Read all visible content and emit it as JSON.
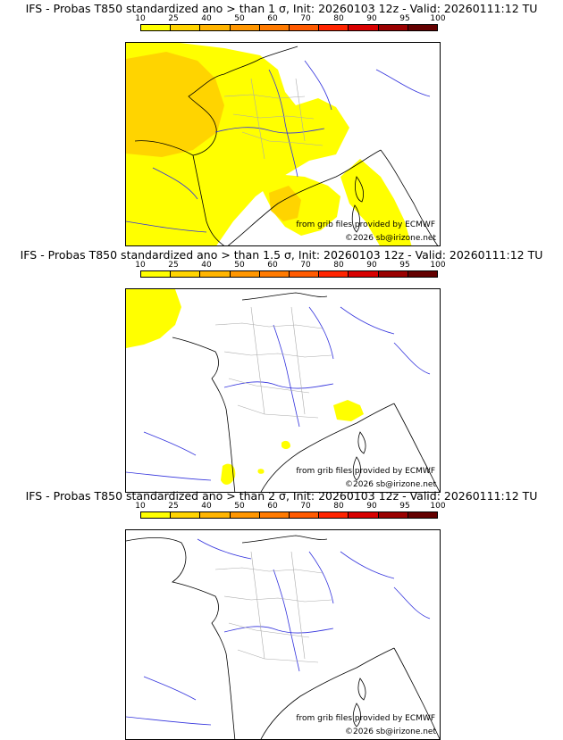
{
  "colors": {
    "scale": [
      "#ffff00",
      "#ffd400",
      "#ffb400",
      "#ff9600",
      "#ff7a00",
      "#ff5a00",
      "#ff2400",
      "#d80000",
      "#9a0000",
      "#640000"
    ],
    "coast": "#000000",
    "rivers": "#3333dd",
    "regions": "#aaaaaa"
  },
  "panels": [
    {
      "title": "IFS - Probas T850  standardized ano > than 1 σ, Init: 20260103 12z - Valid: 20260111:12 TU",
      "scale_ticks": [
        "10",
        "25",
        "40",
        "50",
        "60",
        "70",
        "80",
        "90",
        "95",
        "100"
      ],
      "credit_provider": "from grib files provided by ECMWF",
      "credit_copyright": "©2026 sb@irizone.net",
      "probability_areas": [
        {
          "level": "10",
          "shape": "west-atlantic-france"
        },
        {
          "level": "10",
          "shape": "mediterranean-italy"
        },
        {
          "level": "25",
          "shape": "bay-of-biscay-core"
        },
        {
          "level": "25",
          "shape": "gulf-of-lion-core"
        }
      ]
    },
    {
      "title": "IFS - Probas T850  standardized ano > than 1.5 σ, Init: 20260103 12z - Valid: 20260111:12 TU",
      "scale_ticks": [
        "10",
        "25",
        "40",
        "50",
        "60",
        "70",
        "80",
        "90",
        "95",
        "100"
      ],
      "credit_provider": "from grib files provided by ECMWF",
      "credit_copyright": "©2026 sb@irizone.net",
      "probability_areas": [
        {
          "level": "10",
          "shape": "northwest-corner"
        },
        {
          "level": "10",
          "shape": "ligurian-patch"
        },
        {
          "level": "10",
          "shape": "small-mediterranean-spots"
        }
      ]
    },
    {
      "title": "IFS - Probas T850  standardized ano > than 2 σ, Init: 20260103 12z - Valid: 20260111:12 TU",
      "scale_ticks": [
        "10",
        "25",
        "40",
        "50",
        "60",
        "70",
        "80",
        "90",
        "95",
        "100"
      ],
      "credit_provider": "from grib files provided by ECMWF",
      "credit_copyright": "©2026 sb@irizone.net",
      "probability_areas": []
    }
  ]
}
